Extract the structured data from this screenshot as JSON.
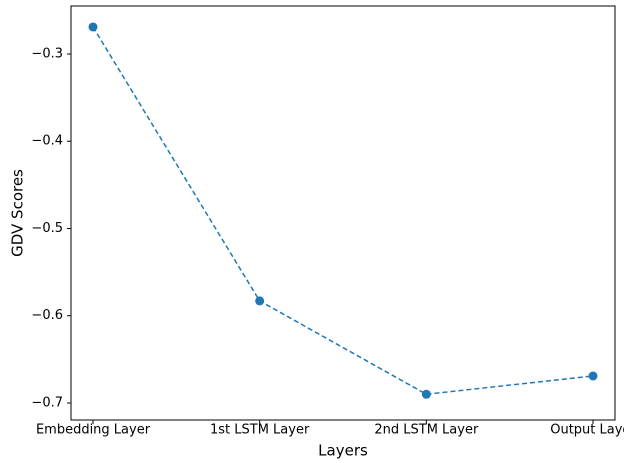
{
  "chart_data": {
    "type": "line",
    "xlabel": "Layers",
    "ylabel": "GDV Scores",
    "categories": [
      "Embedding Layer",
      "1st LSTM Layer",
      "2nd LSTM Layer",
      "Output Layer"
    ],
    "series": [
      {
        "color": "#1f77b4",
        "values": [
          -0.269,
          -0.583,
          -0.69,
          -0.669
        ]
      }
    ],
    "ylim": [
      -0.7195,
      -0.245
    ],
    "yticks": [
      {
        "value": -0.3,
        "label": "−0.3"
      },
      {
        "value": -0.4,
        "label": "−0.4"
      },
      {
        "value": -0.5,
        "label": "−0.5"
      },
      {
        "value": -0.6,
        "label": "−0.6"
      },
      {
        "value": -0.7,
        "label": "−0.7"
      }
    ]
  }
}
